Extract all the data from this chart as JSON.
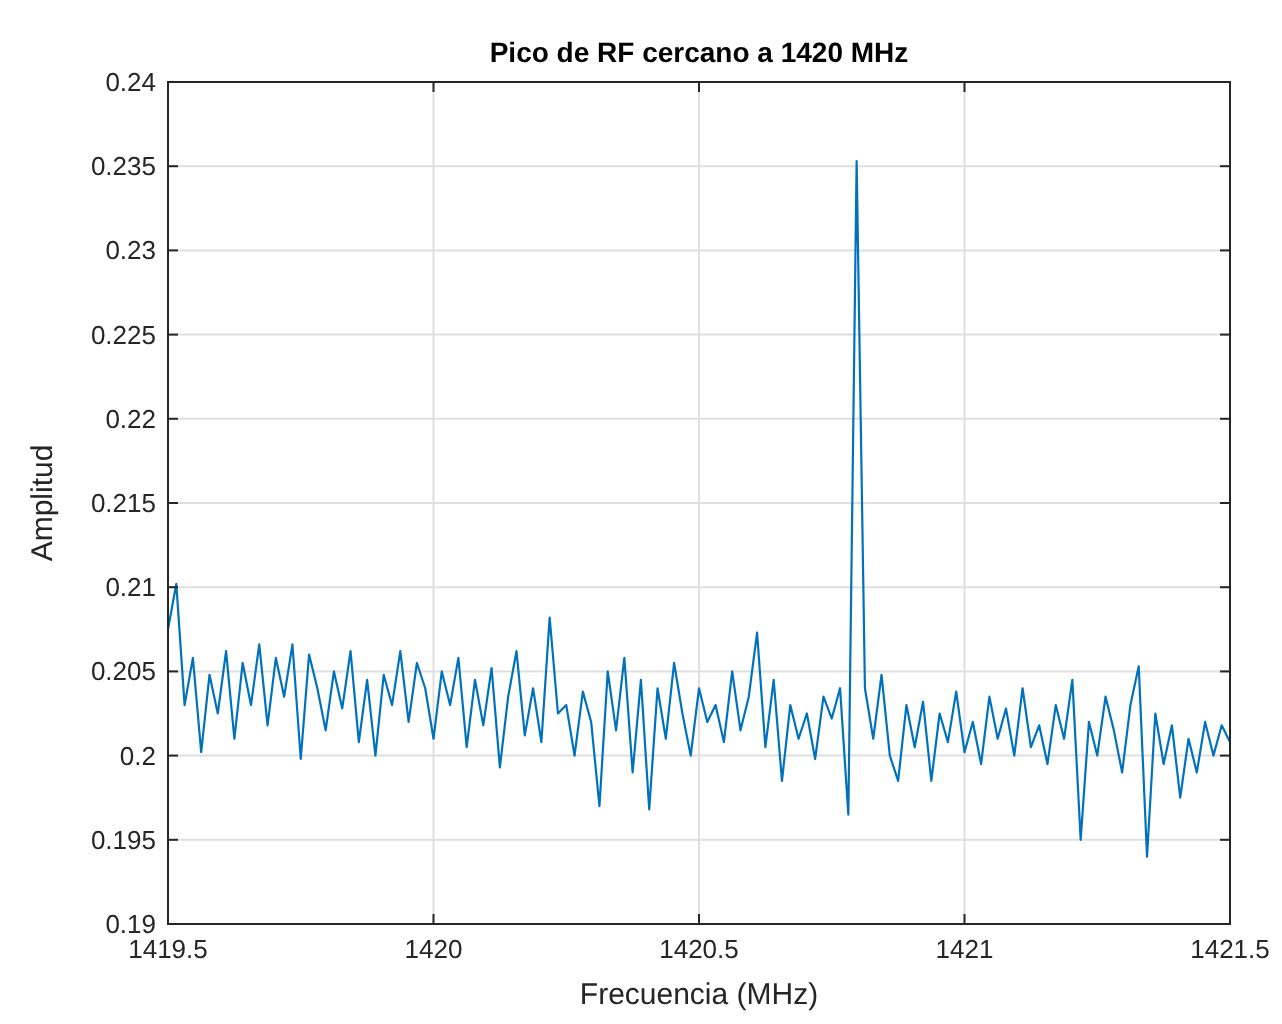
{
  "chart_data": {
    "type": "line",
    "title": "Pico de RF cercano a 1420 MHz",
    "xlabel": "Frecuencia (MHz)",
    "ylabel": "Amplitud",
    "xlim": [
      1419.5,
      1421.5
    ],
    "xticks": [
      1419.5,
      1420,
      1420.5,
      1421,
      1421.5
    ],
    "ylim": [
      0.19,
      0.24
    ],
    "yticks": [
      0.19,
      0.195,
      0.2,
      0.205,
      0.21,
      0.215,
      0.22,
      0.225,
      0.23,
      0.235,
      0.24
    ],
    "grid": true,
    "marker": "none",
    "line_style": "solid",
    "x": [
      1419.5,
      1419.515625,
      1419.53125,
      1419.546875,
      1419.5625,
      1419.578125,
      1419.59375,
      1419.609375,
      1419.625,
      1419.640625,
      1419.65625,
      1419.671875,
      1419.6875,
      1419.703125,
      1419.71875,
      1419.734375,
      1419.75,
      1419.765625,
      1419.78125,
      1419.796875,
      1419.8125,
      1419.828125,
      1419.84375,
      1419.859375,
      1419.875,
      1419.890625,
      1419.90625,
      1419.921875,
      1419.9375,
      1419.953125,
      1419.96875,
      1419.984375,
      1420,
      1420.015625,
      1420.03125,
      1420.046875,
      1420.0625,
      1420.078125,
      1420.09375,
      1420.109375,
      1420.125,
      1420.140625,
      1420.15625,
      1420.171875,
      1420.1875,
      1420.203125,
      1420.21875,
      1420.234375,
      1420.25,
      1420.265625,
      1420.28125,
      1420.296875,
      1420.3125,
      1420.328125,
      1420.34375,
      1420.359375,
      1420.375,
      1420.390625,
      1420.40625,
      1420.421875,
      1420.4375,
      1420.453125,
      1420.46875,
      1420.484375,
      1420.5,
      1420.515625,
      1420.53125,
      1420.546875,
      1420.5625,
      1420.578125,
      1420.59375,
      1420.609375,
      1420.625,
      1420.640625,
      1420.65625,
      1420.671875,
      1420.6875,
      1420.703125,
      1420.71875,
      1420.734375,
      1420.75,
      1420.765625,
      1420.78125,
      1420.796875,
      1420.8125,
      1420.828125,
      1420.84375,
      1420.859375,
      1420.875,
      1420.890625,
      1420.90625,
      1420.921875,
      1420.9375,
      1420.953125,
      1420.96875,
      1420.984375,
      1421,
      1421.015625,
      1421.03125,
      1421.046875,
      1421.0625,
      1421.078125,
      1421.09375,
      1421.109375,
      1421.125,
      1421.140625,
      1421.15625,
      1421.171875,
      1421.1875,
      1421.203125,
      1421.21875,
      1421.234375,
      1421.25,
      1421.265625,
      1421.28125,
      1421.296875,
      1421.3125,
      1421.328125,
      1421.34375,
      1421.359375,
      1421.375,
      1421.390625,
      1421.40625,
      1421.421875,
      1421.4375,
      1421.453125,
      1421.46875,
      1421.484375,
      1421.5
    ],
    "series": [
      {
        "color": "#0072bd",
        "values": [
          0.2075,
          0.2102,
          0.203,
          0.2058,
          0.2002,
          0.2048,
          0.2025,
          0.2062,
          0.201,
          0.2055,
          0.203,
          0.2066,
          0.2018,
          0.2058,
          0.2035,
          0.2066,
          0.1998,
          0.206,
          0.204,
          0.2015,
          0.205,
          0.2028,
          0.2062,
          0.2008,
          0.2045,
          0.2,
          0.2048,
          0.203,
          0.2062,
          0.202,
          0.2055,
          0.204,
          0.201,
          0.205,
          0.203,
          0.2058,
          0.2005,
          0.2045,
          0.2018,
          0.2052,
          0.1993,
          0.2035,
          0.2062,
          0.2012,
          0.204,
          0.2008,
          0.2082,
          0.2025,
          0.203,
          0.2,
          0.2038,
          0.202,
          0.197,
          0.205,
          0.2015,
          0.2058,
          0.199,
          0.2045,
          0.1968,
          0.204,
          0.201,
          0.2055,
          0.2025,
          0.2,
          0.204,
          0.202,
          0.203,
          0.2008,
          0.205,
          0.2015,
          0.2035,
          0.2073,
          0.2005,
          0.2045,
          0.1985,
          0.203,
          0.201,
          0.2025,
          0.1998,
          0.2035,
          0.2022,
          0.204,
          0.1965,
          0.2353,
          0.204,
          0.201,
          0.2048,
          0.2,
          0.1985,
          0.203,
          0.2005,
          0.2032,
          0.1985,
          0.2025,
          0.2008,
          0.2038,
          0.2002,
          0.202,
          0.1995,
          0.2035,
          0.201,
          0.2028,
          0.2,
          0.204,
          0.2005,
          0.2018,
          0.1995,
          0.203,
          0.201,
          0.2045,
          0.195,
          0.202,
          0.2,
          0.2035,
          0.2015,
          0.199,
          0.203,
          0.2053,
          0.194,
          0.2025,
          0.1995,
          0.2018,
          0.1975,
          0.201,
          0.199,
          0.202,
          0.2,
          0.2018,
          0.2008
        ]
      }
    ]
  }
}
